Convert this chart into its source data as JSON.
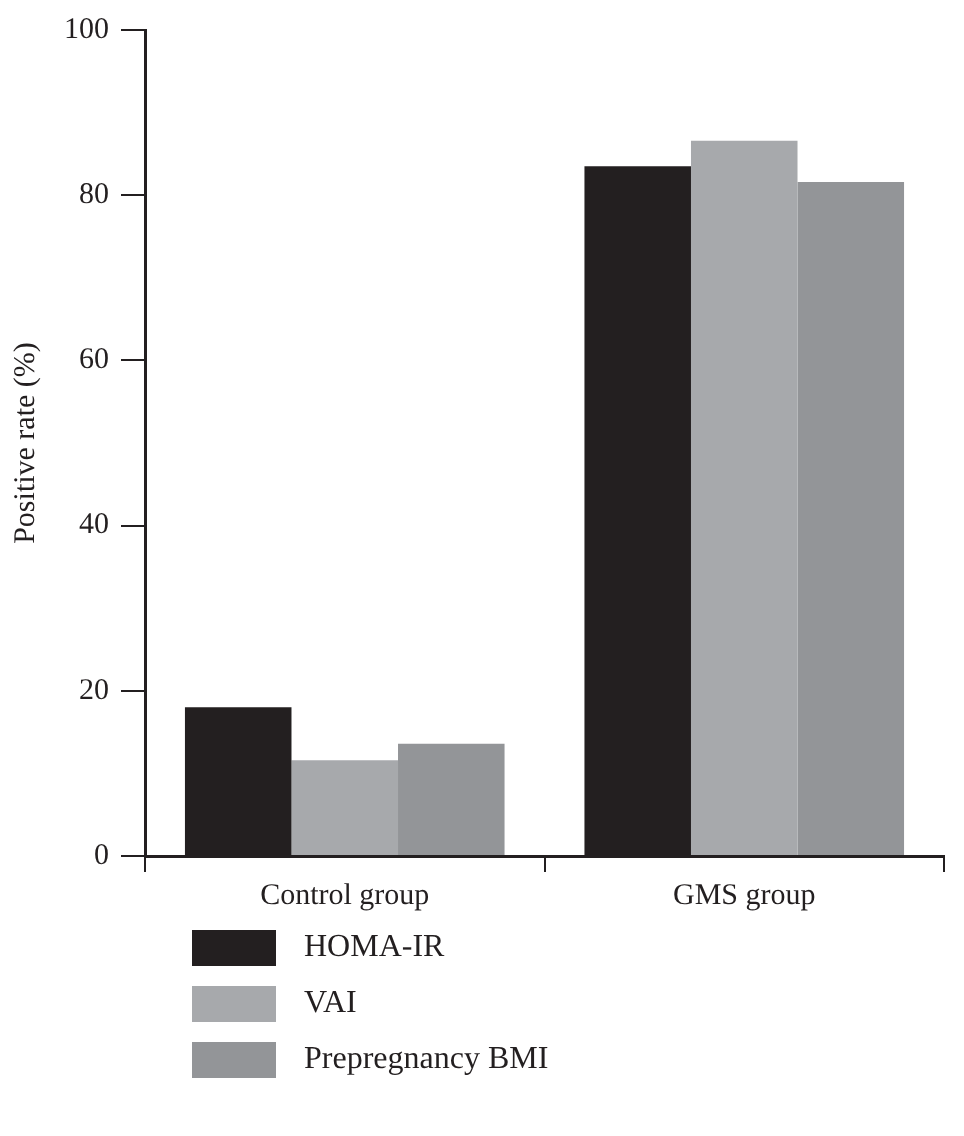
{
  "chart_data": {
    "type": "bar",
    "ylabel": "Positive rate (%)",
    "categories": [
      "Control group",
      "GMS group"
    ],
    "series": [
      {
        "name": "HOMA-IR",
        "color": "#231f20",
        "values": [
          18,
          83.5
        ]
      },
      {
        "name": "VAI",
        "color": "#a7a9ac",
        "values": [
          11.6,
          86.6
        ]
      },
      {
        "name": "Prepregnancy BMI",
        "color": "#939598",
        "values": [
          13.6,
          81.6
        ]
      }
    ],
    "ylim": [
      0,
      100
    ],
    "yticks": [
      0,
      20,
      40,
      60,
      80,
      100
    ],
    "grid": false,
    "legend": "bottom"
  }
}
